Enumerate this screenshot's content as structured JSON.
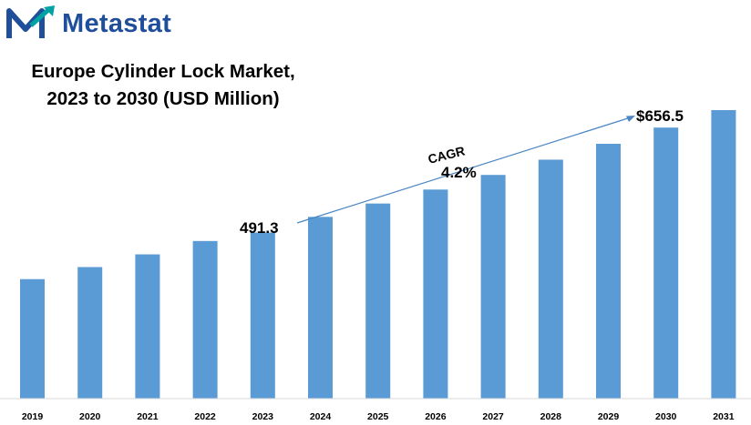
{
  "brand": {
    "name": "Metastat",
    "color": "#1f4e9b",
    "accent": "#00a3a3"
  },
  "title_lines": [
    "Europe Cylinder Lock Market,",
    "2023 to 2030 (USD Million)"
  ],
  "annotations": {
    "start_value": "491.3",
    "cagr_label": "CAGR",
    "cagr_value": "4.2%",
    "end_value": "$656.5"
  },
  "chart_data": {
    "type": "bar",
    "title": "Europe Cylinder Lock Market, 2023 to 2030 (USD Million)",
    "categories": [
      "2019",
      "2020",
      "2021",
      "2022",
      "2023",
      "2024",
      "2025",
      "2026",
      "2027",
      "2028",
      "2029",
      "2030",
      "2031"
    ],
    "values": [
      418,
      437,
      457,
      478,
      491.3,
      516,
      537,
      559,
      582,
      606,
      631,
      656.5,
      684
    ],
    "ylim": [
      230,
      720
    ],
    "bar_color": "#5b9bd5",
    "grid": false,
    "legend": "none"
  }
}
